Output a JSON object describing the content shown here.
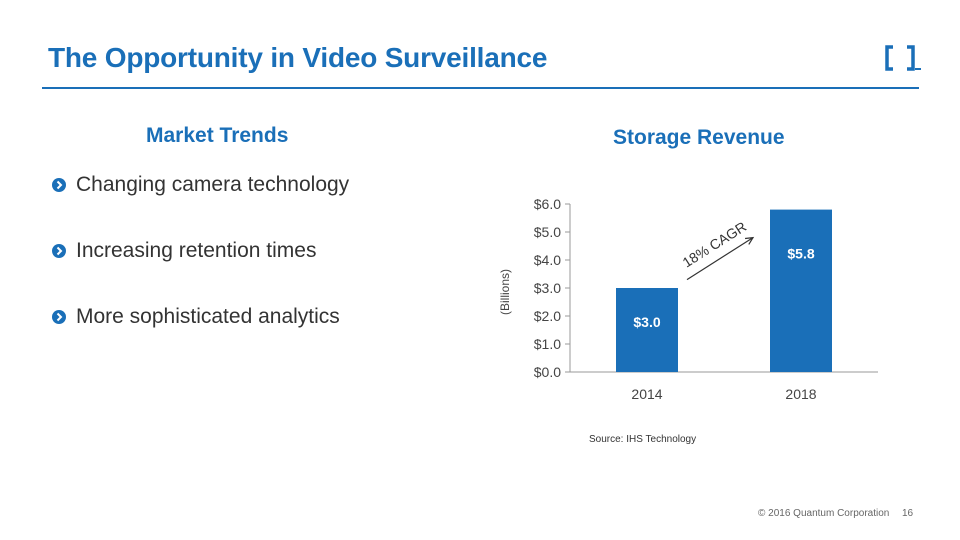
{
  "slide": {
    "title": "The Opportunity in Video Surveillance",
    "accent": "#1a6fb8"
  },
  "left": {
    "heading": "Market Trends",
    "bullets": [
      "Changing camera technology",
      "Increasing retention times",
      "More sophisticated analytics"
    ],
    "bullet_icon": "chevron-right-icon"
  },
  "right": {
    "heading": "Storage Revenue",
    "source": "Source: IHS Technology"
  },
  "chart_data": {
    "type": "bar",
    "title": "Storage Revenue",
    "categories": [
      "2014",
      "2018"
    ],
    "values": [
      3.0,
      5.8
    ],
    "data_labels": [
      "$3.0",
      "$5.8"
    ],
    "ylabel": "(Billions)",
    "xlabel": "",
    "ylim": [
      0,
      6
    ],
    "yticks": [
      0,
      1,
      2,
      3,
      4,
      5,
      6
    ],
    "ytick_labels": [
      "$0.0",
      "$1.0",
      "$2.0",
      "$3.0",
      "$4.0",
      "$5.0",
      "$6.0"
    ],
    "annotation": "18% CAGR",
    "bar_color": "#1a6fb8",
    "grid": false
  },
  "footer": {
    "copyright": "© 2016 Quantum Corporation",
    "page_number": "16"
  }
}
